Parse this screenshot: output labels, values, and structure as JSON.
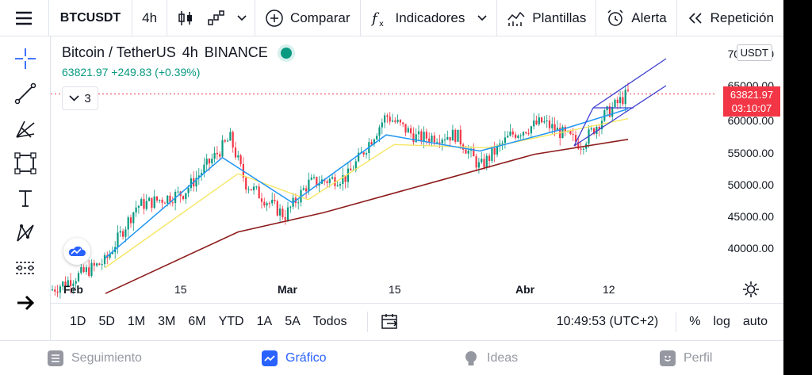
{
  "topbar": {
    "symbol": "BTCUSDT",
    "interval": "4h",
    "compare_label": "Comparar",
    "indicators_label": "Indicadores",
    "templates_label": "Plantillas",
    "alert_label": "Alerta",
    "replay_label": "Repetición"
  },
  "legend": {
    "title": "Bitcoin / TetherUS",
    "interval": "4h",
    "exchange": "BINANCE",
    "price_line": "63821.97 +249.83 (+0.39%)",
    "collapse_count": "3"
  },
  "price_scale": {
    "currency": "USDT",
    "ticks": [
      "70000.00",
      "65000.00",
      "60000.00",
      "55000.00",
      "50000.00",
      "45000.00",
      "40000.00"
    ],
    "current_price": "63821.97",
    "countdown": "03:10:07"
  },
  "time_axis": {
    "labels": [
      "Feb",
      "15",
      "Mar",
      "15",
      "Abr",
      "12"
    ]
  },
  "range_bar": {
    "ranges": [
      "1D",
      "5D",
      "1M",
      "3M",
      "6M",
      "YTD",
      "1A",
      "5A",
      "Todos"
    ],
    "clock": "10:49:53 (UTC+2)",
    "percent": "%",
    "log": "log",
    "auto": "auto"
  },
  "bottom_nav": {
    "watchlist": "Seguimiento",
    "chart": "Gráfico",
    "ideas": "Ideas",
    "profile": "Perfil"
  },
  "colors": {
    "up": "#089981",
    "down": "#f23645",
    "ma_fast": "#2196f3",
    "ma_mid": "#f5e663",
    "ma_slow": "#8e1c1c",
    "channel": "#3f3fd1",
    "accent": "#2962ff"
  },
  "chart_data": {
    "type": "candlestick",
    "symbol": "BTCUSDT",
    "interval": "4h",
    "x_labels": [
      "Feb",
      "15",
      "Mar",
      "15",
      "Abr",
      "12"
    ],
    "ylim": [
      36000,
      71000
    ],
    "last_price": 63821.97,
    "anchors": [
      [
        "2021-01-29",
        33500
      ],
      [
        "2021-02-05",
        38000
      ],
      [
        "2021-02-09",
        46500
      ],
      [
        "2021-02-15",
        48500
      ],
      [
        "2021-02-21",
        57000
      ],
      [
        "2021-02-23",
        50000
      ],
      [
        "2021-02-28",
        45000
      ],
      [
        "2021-03-03",
        50000
      ],
      [
        "2021-03-08",
        51000
      ],
      [
        "2021-03-13",
        60500
      ],
      [
        "2021-03-17",
        57000
      ],
      [
        "2021-03-22",
        57500
      ],
      [
        "2021-03-25",
        52500
      ],
      [
        "2021-03-29",
        57500
      ],
      [
        "2021-04-02",
        59500
      ],
      [
        "2021-04-07",
        56000
      ],
      [
        "2021-04-10",
        60500
      ],
      [
        "2021-04-13",
        63900
      ]
    ],
    "series": [
      {
        "name": "",
        "type": "line",
        "values": [
          [
            "2021-02-05",
            38500
          ],
          [
            "2021-02-20",
            54000
          ],
          [
            "2021-03-01",
            47000
          ],
          [
            "2021-03-13",
            57500
          ],
          [
            "2021-03-25",
            55000
          ],
          [
            "2021-04-05",
            58500
          ],
          [
            "2021-04-13",
            61500
          ]
        ]
      },
      {
        "name": "",
        "type": "line",
        "values": [
          [
            "2021-02-05",
            37000
          ],
          [
            "2021-02-22",
            51500
          ],
          [
            "2021-03-03",
            47500
          ],
          [
            "2021-03-14",
            56000
          ],
          [
            "2021-03-26",
            55500
          ],
          [
            "2021-04-05",
            58000
          ],
          [
            "2021-04-13",
            60000
          ]
        ]
      },
      {
        "name": "",
        "type": "line",
        "values": [
          [
            "2021-02-05",
            33000
          ],
          [
            "2021-02-22",
            42500
          ],
          [
            "2021-03-05",
            45500
          ],
          [
            "2021-03-20",
            50500
          ],
          [
            "2021-04-01",
            54500
          ],
          [
            "2021-04-13",
            56800
          ]
        ]
      }
    ]
  }
}
